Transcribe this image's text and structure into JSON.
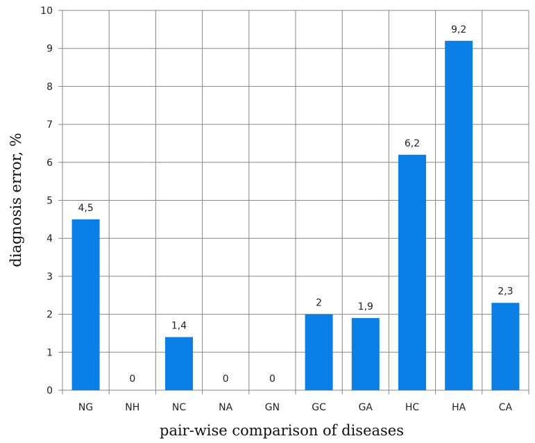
{
  "chart_data": {
    "type": "bar",
    "title": "",
    "xlabel": "pair-wise comparison of diseases",
    "ylabel": "diagnosis error, %",
    "categories": [
      "NG",
      "NH",
      "NC",
      "NA",
      "GN",
      "GC",
      "GA",
      "HC",
      "HA",
      "CA"
    ],
    "values": [
      4.5,
      0,
      1.4,
      0,
      0,
      2,
      1.9,
      6.2,
      9.2,
      2.3
    ],
    "value_labels": [
      "4,5",
      "0",
      "1,4",
      "0",
      "0",
      "2",
      "1,9",
      "6,2",
      "9,2",
      "2,3"
    ],
    "ylim": [
      0,
      10
    ],
    "yticks": [
      "0",
      "1",
      "2",
      "3",
      "4",
      "5",
      "6",
      "7",
      "8",
      "9",
      "10"
    ],
    "grid": "both",
    "legend": "none",
    "colors": {
      "bar": "#0a7fe6",
      "grid": "#868686",
      "axis": "#868686"
    }
  }
}
